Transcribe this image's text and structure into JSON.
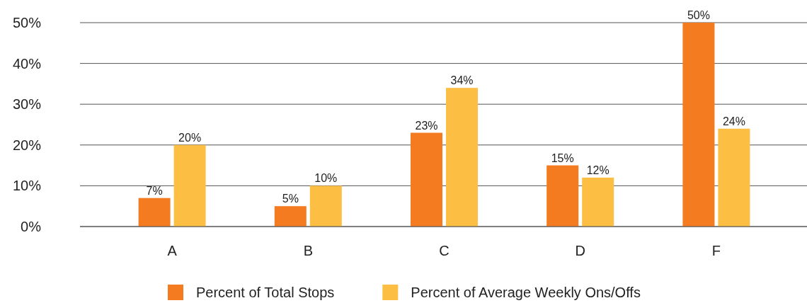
{
  "chart_data": {
    "type": "bar",
    "categories": [
      "A",
      "B",
      "C",
      "D",
      "F"
    ],
    "series": [
      {
        "name": "Percent of Total Stops",
        "color": "#f47b20",
        "values": [
          7,
          5,
          23,
          15,
          50
        ],
        "value_labels": [
          "7%",
          "5%",
          "23%",
          "15%",
          "50%"
        ]
      },
      {
        "name": "Percent of Average Weekly Ons/Offs",
        "color": "#fdbe44",
        "values": [
          20,
          10,
          34,
          12,
          24
        ],
        "value_labels": [
          "20%",
          "10%",
          "34%",
          "12%",
          "24%"
        ]
      }
    ],
    "ylim": [
      0,
      50
    ],
    "yticks": [
      {
        "value": 0,
        "label": "0%"
      },
      {
        "value": 10,
        "label": "10%"
      },
      {
        "value": 20,
        "label": "20%"
      },
      {
        "value": 30,
        "label": "30%"
      },
      {
        "value": 40,
        "label": "40%"
      },
      {
        "value": 50,
        "label": "50%"
      }
    ],
    "grid": "y",
    "legend": "bottom"
  }
}
